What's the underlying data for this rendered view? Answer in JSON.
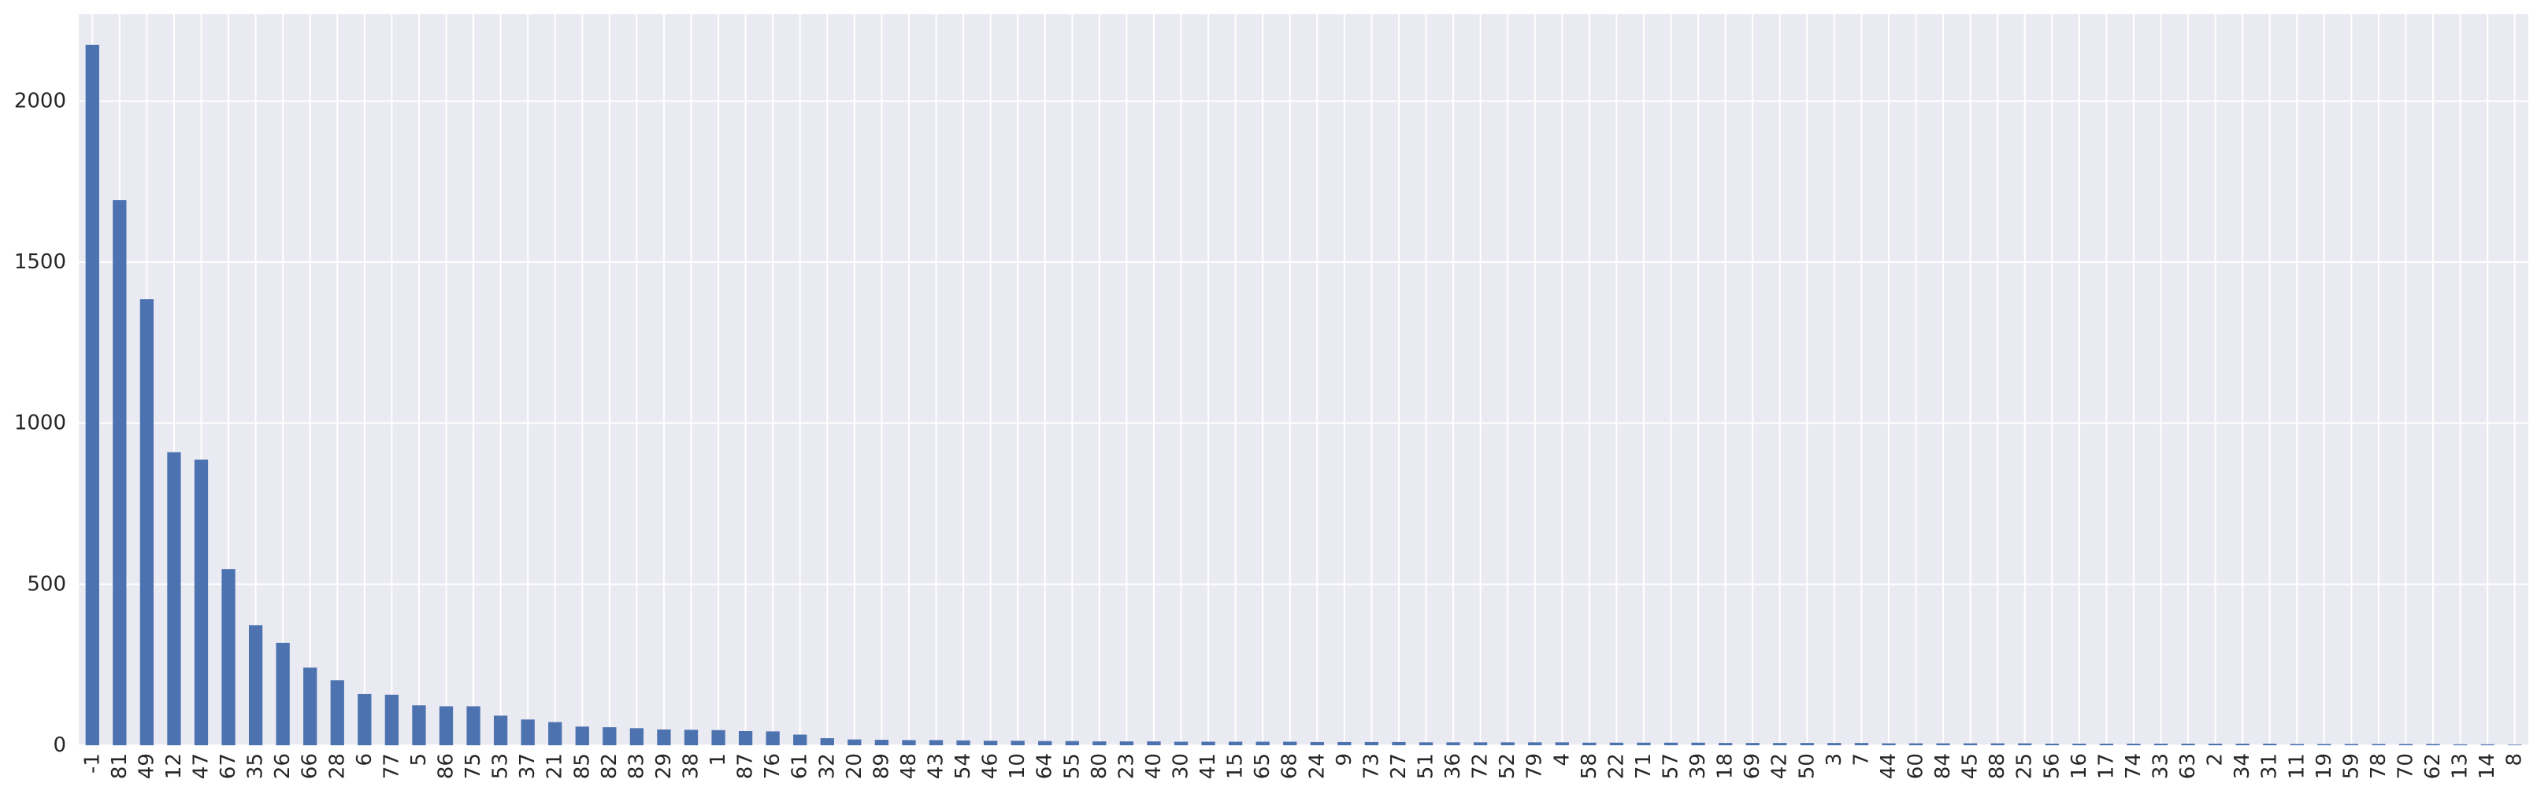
{
  "chart_data": {
    "type": "bar",
    "title": "",
    "xlabel": "",
    "ylabel": "",
    "ylim": [
      0,
      2270
    ],
    "yticks": [
      0,
      500,
      1000,
      1500,
      2000
    ],
    "grid": true,
    "colors": {
      "bar": "#4c72b0",
      "plot_background": "#eaeaf2",
      "grid": "#ffffff",
      "text": "#262626"
    },
    "categories": [
      "-1",
      "81",
      "49",
      "12",
      "47",
      "67",
      "35",
      "26",
      "66",
      "28",
      "6",
      "77",
      "5",
      "86",
      "75",
      "53",
      "37",
      "21",
      "85",
      "82",
      "83",
      "29",
      "38",
      "1",
      "87",
      "76",
      "61",
      "32",
      "20",
      "89",
      "48",
      "43",
      "54",
      "46",
      "10",
      "64",
      "55",
      "80",
      "23",
      "40",
      "30",
      "41",
      "15",
      "65",
      "68",
      "24",
      "9",
      "73",
      "27",
      "51",
      "36",
      "72",
      "52",
      "79",
      "4",
      "58",
      "22",
      "71",
      "57",
      "39",
      "18",
      "69",
      "42",
      "50",
      "3",
      "7",
      "44",
      "60",
      "84",
      "45",
      "88",
      "25",
      "56",
      "16",
      "17",
      "74",
      "33",
      "63",
      "2",
      "34",
      "31",
      "11",
      "19",
      "59",
      "78",
      "70",
      "62",
      "13",
      "14",
      "8"
    ],
    "values": [
      2175,
      1693,
      1385,
      910,
      887,
      547,
      373,
      318,
      241,
      202,
      159,
      157,
      124,
      121,
      121,
      92,
      80,
      72,
      58,
      56,
      53,
      49,
      48,
      47,
      44,
      43,
      33,
      22,
      18,
      17,
      16,
      16,
      15,
      14,
      14,
      13,
      13,
      12,
      12,
      12,
      11,
      11,
      11,
      11,
      11,
      10,
      10,
      10,
      10,
      9,
      9,
      9,
      9,
      9,
      9,
      8,
      8,
      8,
      8,
      8,
      7,
      7,
      7,
      7,
      7,
      7,
      6,
      6,
      6,
      6,
      6,
      6,
      5,
      5,
      5,
      5,
      5,
      5,
      5,
      5,
      5,
      4,
      4,
      4,
      4,
      4,
      4,
      3,
      3,
      2
    ]
  }
}
